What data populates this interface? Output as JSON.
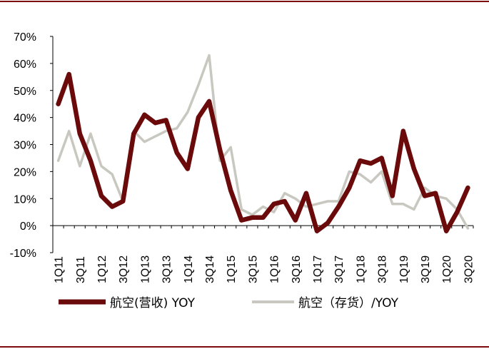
{
  "colors": {
    "rule": "#7b0a0a",
    "revenue": "#6b0a0a",
    "inventory": "#c8c8c0",
    "axis": "#000000"
  },
  "chart_data": {
    "type": "line",
    "categories": [
      "1Q11",
      "2Q11",
      "3Q11",
      "4Q11",
      "1Q12",
      "2Q12",
      "3Q12",
      "4Q12",
      "1Q13",
      "2Q13",
      "3Q13",
      "4Q13",
      "1Q14",
      "2Q14",
      "3Q14",
      "4Q14",
      "1Q15",
      "2Q15",
      "3Q15",
      "4Q15",
      "1Q16",
      "2Q16",
      "3Q16",
      "4Q16",
      "1Q17",
      "2Q17",
      "3Q17",
      "4Q17",
      "1Q18",
      "2Q18",
      "3Q18",
      "4Q18",
      "1Q19",
      "2Q19",
      "3Q19",
      "4Q19",
      "1Q20",
      "2Q20",
      "3Q20"
    ],
    "xtick_labels": [
      "1Q11",
      "3Q11",
      "1Q12",
      "3Q12",
      "1Q13",
      "3Q13",
      "1Q14",
      "3Q14",
      "1Q15",
      "3Q15",
      "1Q16",
      "3Q16",
      "1Q17",
      "3Q17",
      "1Q18",
      "3Q18",
      "1Q19",
      "3Q19",
      "1Q20",
      "3Q20"
    ],
    "yticks": [
      "70%",
      "60%",
      "50%",
      "40%",
      "30%",
      "20%",
      "10%",
      "0%",
      "-10%"
    ],
    "ylim": [
      -10,
      70
    ],
    "series": [
      {
        "name": "航空(营收) YOY",
        "values": [
          45,
          56,
          34,
          24,
          11,
          7,
          9,
          34,
          41,
          38,
          39,
          27,
          21,
          40,
          46,
          28,
          13,
          2,
          3,
          3,
          8,
          9,
          2,
          12,
          -2,
          1,
          7,
          14,
          24,
          23,
          25,
          11,
          35,
          21,
          11,
          12,
          -2,
          5,
          14
        ]
      },
      {
        "name": "航空（存货）/YOY",
        "values": [
          24,
          35,
          22,
          34,
          22,
          19,
          9,
          35,
          31,
          33,
          35,
          36,
          42,
          52,
          63,
          24,
          29,
          6,
          4,
          7,
          5,
          12,
          10,
          7,
          8,
          9,
          9,
          20,
          19,
          16,
          20,
          8,
          8,
          6,
          14,
          11,
          10,
          6,
          -1
        ]
      }
    ],
    "legend": [
      "航空(营收) YOY",
      "航空（存货）/YOY"
    ],
    "legend_position": "bottom",
    "grid": false
  }
}
